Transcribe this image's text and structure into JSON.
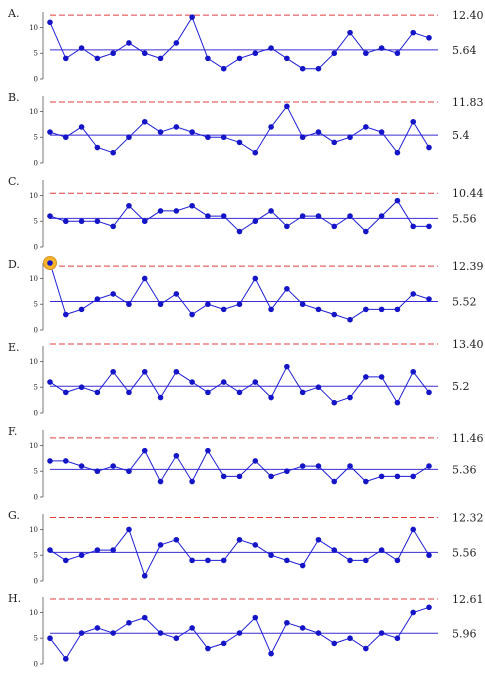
{
  "chart_data": [
    {
      "type": "line",
      "panel": "A.",
      "ylim": [
        0,
        13
      ],
      "yticks": [
        0,
        5,
        10
      ],
      "center_label": "5.64",
      "center": 5.64,
      "limit_label": "12.40",
      "limit": 12.4,
      "values": [
        11,
        4,
        6,
        4,
        5,
        7,
        5,
        4,
        7,
        12,
        4,
        2,
        4,
        5,
        6,
        4,
        2,
        2,
        5,
        9,
        5,
        6,
        5,
        9,
        8
      ],
      "highlighted_index": null
    },
    {
      "type": "line",
      "panel": "B.",
      "ylim": [
        0,
        13
      ],
      "yticks": [
        0,
        5,
        10
      ],
      "center_label": "5.4",
      "center": 5.4,
      "limit_label": "11.83",
      "limit": 11.83,
      "values": [
        6,
        5,
        7,
        3,
        2,
        5,
        8,
        6,
        7,
        6,
        5,
        5,
        4,
        2,
        7,
        11,
        5,
        6,
        4,
        5,
        7,
        6,
        2,
        8,
        3
      ],
      "highlighted_index": null
    },
    {
      "type": "line",
      "panel": "C.",
      "ylim": [
        0,
        13
      ],
      "yticks": [
        0,
        5,
        10
      ],
      "center_label": "5.56",
      "center": 5.56,
      "limit_label": "10.44",
      "limit": 10.44,
      "values": [
        6,
        5,
        5,
        5,
        4,
        8,
        5,
        7,
        7,
        8,
        6,
        6,
        3,
        5,
        7,
        4,
        6,
        6,
        4,
        6,
        3,
        6,
        9,
        4,
        4
      ],
      "highlighted_index": null
    },
    {
      "type": "line",
      "panel": "D.",
      "ylim": [
        0,
        13
      ],
      "yticks": [
        0,
        5,
        10
      ],
      "center_label": "5.52",
      "center": 5.52,
      "limit_label": "12.39",
      "limit": 12.39,
      "values": [
        13,
        3,
        4,
        6,
        7,
        5,
        10,
        5,
        7,
        3,
        5,
        4,
        5,
        10,
        4,
        8,
        5,
        4,
        3,
        2,
        4,
        4,
        4,
        7,
        6
      ],
      "highlighted_index": 0
    },
    {
      "type": "line",
      "panel": "E.",
      "ylim": [
        0,
        13
      ],
      "yticks": [
        0,
        5,
        10
      ],
      "center_label": "5.2",
      "center": 5.2,
      "limit_label": "13.40",
      "limit": 13.4,
      "values": [
        6,
        4,
        5,
        4,
        8,
        4,
        8,
        3,
        8,
        6,
        4,
        6,
        4,
        6,
        3,
        9,
        4,
        5,
        2,
        3,
        7,
        7,
        2,
        8,
        4
      ],
      "highlighted_index": null
    },
    {
      "type": "line",
      "panel": "F.",
      "ylim": [
        0,
        13
      ],
      "yticks": [
        0,
        5,
        10
      ],
      "center_label": "5.36",
      "center": 5.36,
      "limit_label": "11.46",
      "limit": 11.46,
      "values": [
        7,
        7,
        6,
        5,
        6,
        5,
        9,
        3,
        8,
        3,
        9,
        4,
        4,
        7,
        4,
        5,
        6,
        6,
        3,
        6,
        3,
        4,
        4,
        4,
        6
      ],
      "highlighted_index": null
    },
    {
      "type": "line",
      "panel": "G.",
      "ylim": [
        0,
        13
      ],
      "yticks": [
        0,
        5,
        10
      ],
      "center_label": "5.56",
      "center": 5.56,
      "limit_label": "12.32",
      "limit": 12.32,
      "values": [
        6,
        4,
        5,
        6,
        6,
        10,
        1,
        7,
        8,
        4,
        4,
        4,
        8,
        7,
        5,
        4,
        3,
        8,
        6,
        4,
        4,
        6,
        4,
        10,
        5
      ],
      "highlighted_index": null
    },
    {
      "type": "line",
      "panel": "H.",
      "ylim": [
        0,
        13
      ],
      "yticks": [
        0,
        5,
        10
      ],
      "center_label": "5.96",
      "center": 5.96,
      "limit_label": "12.61",
      "limit": 12.61,
      "values": [
        5,
        1,
        6,
        7,
        6,
        8,
        9,
        6,
        5,
        7,
        3,
        4,
        6,
        9,
        2,
        8,
        7,
        6,
        4,
        5,
        3,
        6,
        5,
        10,
        11
      ],
      "highlighted_index": null
    }
  ],
  "colors": {
    "series": "#1f1fd6",
    "marker": "#1515c8",
    "center_line": "#3a2bd6",
    "limit_line": "#e03c3c",
    "highlight_fill": "#f6b62a",
    "highlight_ring": "#d9902a",
    "axis": "#555555",
    "text": "#222222"
  }
}
